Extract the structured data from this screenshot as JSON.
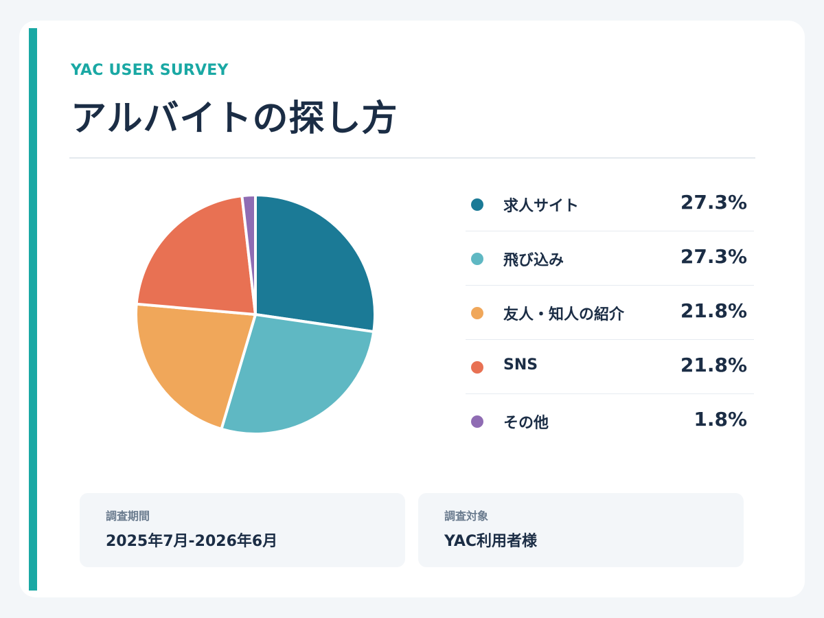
{
  "header": {
    "eyebrow": "YAC USER SURVEY",
    "title": "アルバイトの探し方"
  },
  "chart_data": {
    "type": "pie",
    "categories": [
      "求人サイト",
      "飛び込み",
      "友人・知人の紹介",
      "SNS",
      "その他"
    ],
    "values": [
      27.3,
      27.3,
      21.8,
      21.8,
      1.8
    ],
    "value_labels": [
      "27.3%",
      "27.3%",
      "21.8%",
      "21.8%",
      "1.8%"
    ],
    "colors": [
      "#1b7a96",
      "#5fb8c3",
      "#f0a75a",
      "#e87153",
      "#8f6cb3"
    ],
    "legend_placement": "right"
  },
  "info": {
    "period_label": "調査期間",
    "period_value": "2025年7月-2026年6月",
    "target_label": "調査対象",
    "target_value": "YAC利用者様"
  }
}
